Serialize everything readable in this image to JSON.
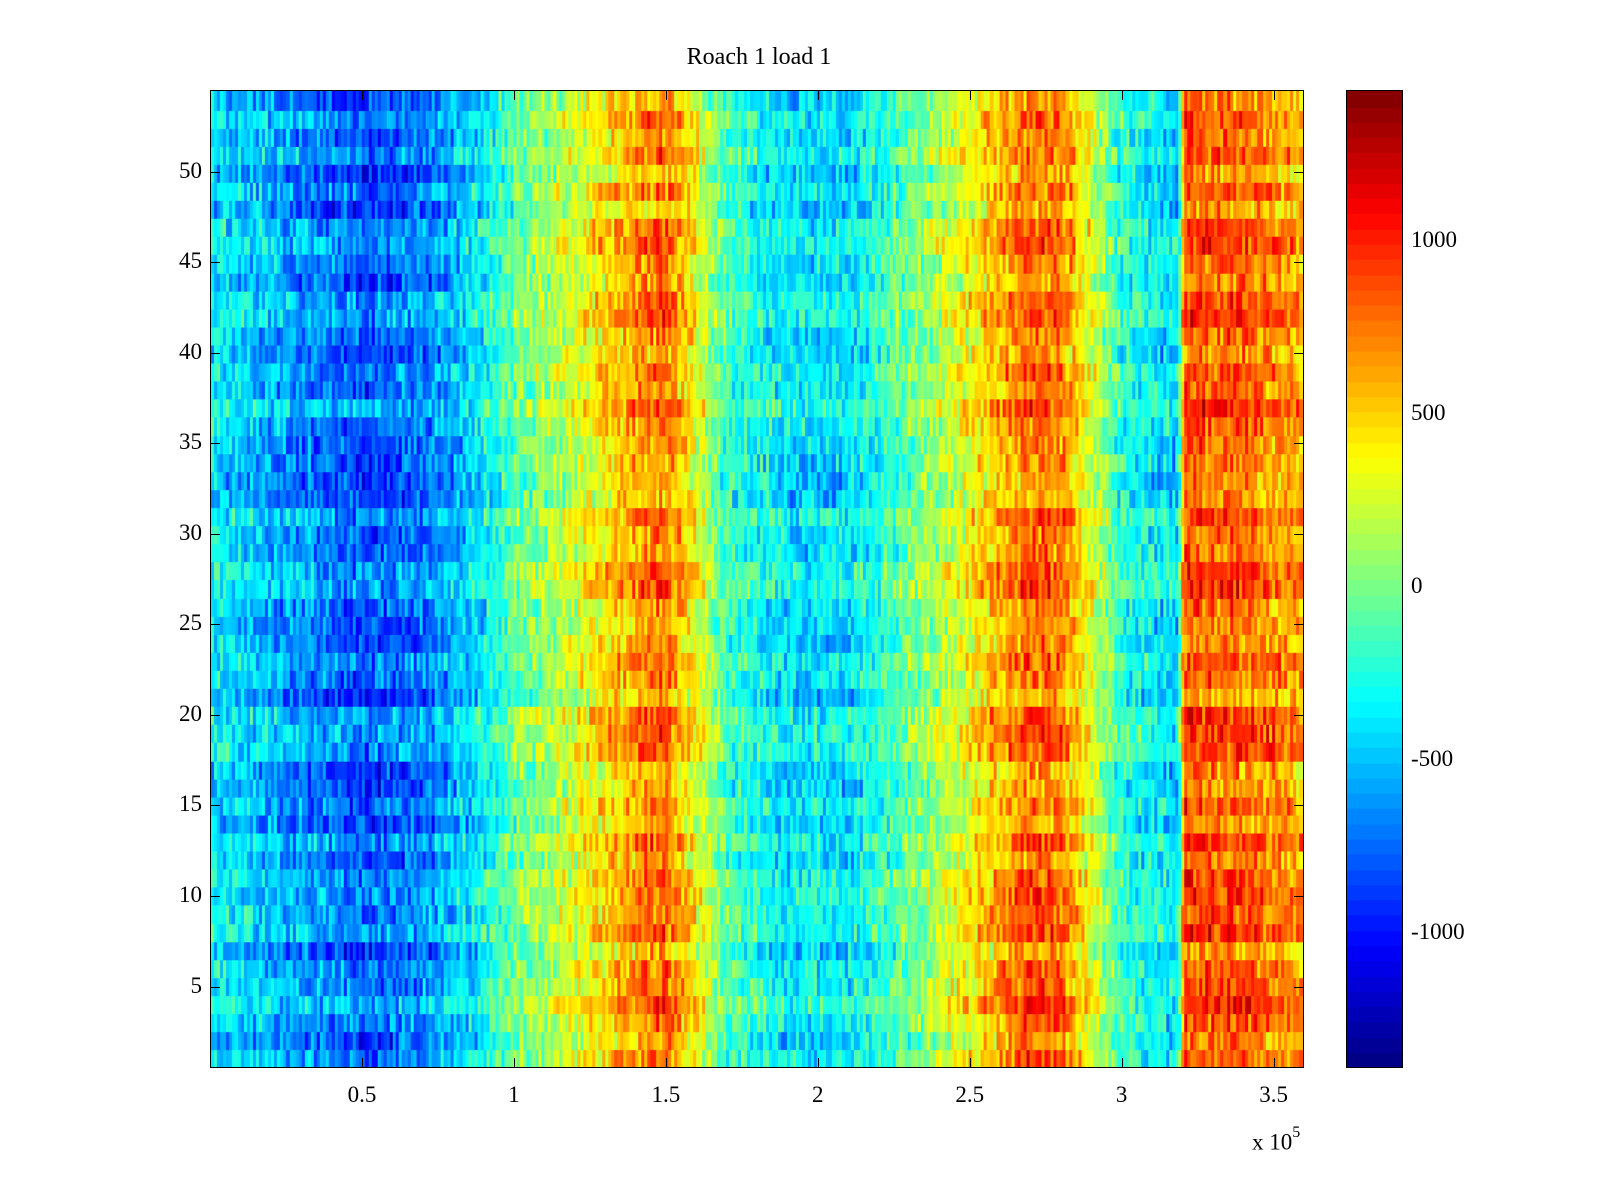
{
  "chart_data": {
    "type": "heatmap",
    "title": "Roach 1 load 1",
    "xlabel": "",
    "ylabel": "",
    "x_multiplier_label": "x 10",
    "x_multiplier_exp": "5",
    "xlim": [
      0,
      3.6
    ],
    "ylim": [
      0.5,
      54.5
    ],
    "rows": 54,
    "columns": 360,
    "colormap": "jet",
    "clim": [
      -1390,
      1435
    ],
    "xticks": [
      0.5,
      1,
      1.5,
      2,
      2.5,
      3,
      3.5
    ],
    "xtick_labels": [
      "0.5",
      "1",
      "1.5",
      "2",
      "2.5",
      "3",
      "3.5"
    ],
    "yticks": [
      5,
      10,
      15,
      20,
      25,
      30,
      35,
      40,
      45,
      50
    ],
    "ytick_labels": [
      "5",
      "10",
      "15",
      "20",
      "25",
      "30",
      "35",
      "40",
      "45",
      "50"
    ],
    "colorbar_ticks": [
      -1000,
      -500,
      0,
      500,
      1000
    ],
    "colorbar_tick_labels": [
      "-1000",
      "-500",
      "0",
      "500",
      "1000"
    ],
    "column_mean_profile": {
      "x": [
        0,
        0.2,
        0.5,
        0.7,
        0.9,
        1.0,
        1.2,
        1.4,
        1.5,
        1.6,
        1.7,
        1.9,
        2.1,
        2.3,
        2.5,
        2.7,
        2.8,
        2.9,
        3.0,
        3.19,
        3.21,
        3.4,
        3.6
      ],
      "value": [
        -350,
        -550,
        -800,
        -700,
        -350,
        -50,
        250,
        650,
        750,
        350,
        -150,
        -400,
        -400,
        -50,
        350,
        800,
        750,
        300,
        -200,
        -450,
        850,
        800,
        600
      ]
    },
    "noise_amplitude": 380
  }
}
